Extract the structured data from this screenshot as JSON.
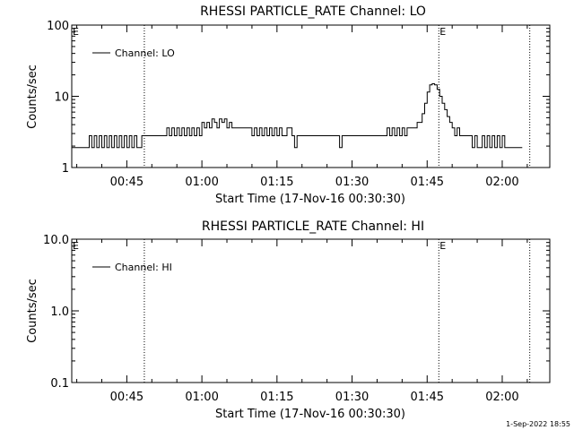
{
  "footer": {
    "timestamp": "1-Sep-2022 18:55"
  },
  "chart_data": [
    {
      "type": "line",
      "title": "RHESSI PARTICLE_RATE Channel: LO",
      "xlabel": "Start Time (17-Nov-16 00:30:30)",
      "ylabel": "Counts/sec",
      "yscale": "log",
      "ylim": [
        1,
        100
      ],
      "xlim": [
        "00:34:00",
        "02:09:30"
      ],
      "x_tick_labels": [
        "00:45",
        "01:00",
        "01:15",
        "01:30",
        "01:45",
        "02:00"
      ],
      "y_tick_labels": [
        "1",
        "10",
        "100"
      ],
      "legend": {
        "position": "top-left",
        "entries": [
          "Channel: LO"
        ]
      },
      "event_markers": [
        {
          "time": "00:48:30",
          "label": ""
        },
        {
          "time": "01:47:20",
          "label": "E"
        },
        {
          "time": "02:05:30",
          "label": ""
        }
      ],
      "left_edge_label": "E",
      "series": [
        {
          "name": "Channel: LO",
          "x": [
            "00:34:00",
            "00:37:00",
            "00:37:30",
            "00:38:00",
            "00:38:30",
            "00:39:00",
            "00:39:30",
            "00:40:00",
            "00:40:30",
            "00:41:00",
            "00:41:30",
            "00:42:00",
            "00:42:30",
            "00:43:00",
            "00:43:30",
            "00:44:00",
            "00:44:30",
            "00:45:00",
            "00:45:30",
            "00:46:00",
            "00:46:30",
            "00:47:00",
            "00:48:00",
            "00:49:00",
            "00:52:00",
            "00:53:00",
            "00:53:30",
            "00:54:00",
            "00:54:30",
            "00:55:00",
            "00:55:30",
            "00:56:00",
            "00:56:30",
            "00:57:00",
            "00:57:30",
            "00:58:00",
            "00:58:30",
            "00:59:00",
            "00:59:30",
            "01:00:00",
            "01:00:30",
            "01:01:00",
            "01:01:30",
            "01:02:00",
            "01:02:30",
            "01:03:00",
            "01:03:30",
            "01:04:00",
            "01:04:30",
            "01:05:00",
            "01:05:30",
            "01:06:00",
            "01:06:30",
            "01:07:00",
            "01:07:30",
            "01:08:00",
            "01:09:00",
            "01:10:00",
            "01:10:30",
            "01:11:00",
            "01:11:30",
            "01:12:00",
            "01:12:30",
            "01:13:00",
            "01:13:30",
            "01:14:00",
            "01:14:30",
            "01:15:00",
            "01:15:30",
            "01:16:00",
            "01:17:00",
            "01:18:00",
            "01:18:30",
            "01:19:00",
            "01:22:00",
            "01:23:00",
            "01:27:00",
            "01:27:30",
            "01:28:00",
            "01:35:00",
            "01:36:00",
            "01:37:00",
            "01:37:30",
            "01:38:00",
            "01:38:30",
            "01:39:00",
            "01:39:30",
            "01:40:00",
            "01:40:30",
            "01:41:00",
            "01:42:00",
            "01:43:00",
            "01:44:00",
            "01:44:30",
            "01:45:00",
            "01:45:30",
            "01:46:00",
            "01:46:30",
            "01:47:00",
            "01:47:30",
            "01:48:00",
            "01:48:30",
            "01:49:00",
            "01:49:30",
            "01:50:00",
            "01:50:30",
            "01:51:00",
            "01:51:30",
            "01:52:00",
            "01:52:30",
            "01:53:00",
            "01:53:30",
            "01:54:00",
            "01:54:30",
            "01:55:00",
            "01:56:00",
            "01:56:30",
            "01:57:00",
            "01:57:30",
            "01:58:00",
            "01:58:30",
            "01:59:00",
            "01:59:30",
            "02:00:00",
            "02:00:30",
            "02:01:00",
            "02:01:30",
            "02:02:00",
            "02:02:30",
            "02:03:00",
            "02:03:30",
            "02:04:00"
          ],
          "y": [
            1.9,
            1.9,
            2.8,
            1.9,
            2.8,
            1.9,
            2.8,
            1.9,
            2.8,
            1.9,
            2.8,
            1.9,
            2.8,
            1.9,
            2.8,
            1.9,
            2.8,
            1.9,
            2.8,
            1.9,
            2.8,
            1.9,
            2.8,
            2.8,
            2.8,
            3.6,
            2.8,
            3.6,
            2.8,
            3.6,
            2.8,
            3.6,
            2.8,
            3.6,
            2.8,
            3.6,
            2.8,
            3.6,
            2.8,
            4.3,
            3.6,
            4.3,
            3.6,
            4.8,
            4.3,
            3.6,
            4.8,
            4.3,
            4.8,
            3.6,
            4.3,
            3.6,
            3.6,
            3.6,
            3.6,
            3.6,
            3.6,
            2.8,
            3.6,
            2.8,
            3.6,
            2.8,
            3.6,
            2.8,
            3.6,
            2.8,
            3.6,
            2.8,
            3.6,
            2.8,
            3.6,
            2.8,
            1.9,
            2.8,
            2.8,
            2.8,
            2.8,
            1.9,
            2.8,
            2.8,
            2.8,
            3.6,
            2.8,
            3.6,
            2.8,
            3.6,
            2.8,
            3.6,
            2.8,
            3.6,
            3.6,
            4.3,
            5.7,
            8.0,
            11.5,
            14.5,
            15.0,
            14.5,
            12.5,
            10.0,
            8.0,
            6.5,
            5.2,
            4.3,
            3.6,
            2.8,
            3.6,
            2.8,
            2.8,
            2.8,
            2.8,
            2.8,
            1.9,
            2.8,
            1.9,
            2.8,
            1.9,
            2.8,
            1.9,
            2.8,
            1.9,
            2.8,
            1.9,
            2.8,
            1.9,
            1.9,
            1.9,
            1.9,
            1.9,
            1.9,
            1.9,
            1.9
          ]
        }
      ]
    },
    {
      "type": "line",
      "title": "RHESSI PARTICLE_RATE Channel: HI",
      "xlabel": "Start Time (17-Nov-16 00:30:30)",
      "ylabel": "Counts/sec",
      "yscale": "log",
      "ylim": [
        0.1,
        10
      ],
      "xlim": [
        "00:34:00",
        "02:09:30"
      ],
      "x_tick_labels": [
        "00:45",
        "01:00",
        "01:15",
        "01:30",
        "01:45",
        "02:00"
      ],
      "y_tick_labels": [
        "0.1",
        "1.0",
        "10.0"
      ],
      "legend": {
        "position": "top-left",
        "entries": [
          "Channel: HI"
        ]
      },
      "event_markers": [
        {
          "time": "00:48:30",
          "label": ""
        },
        {
          "time": "01:47:20",
          "label": "E"
        },
        {
          "time": "02:05:30",
          "label": ""
        }
      ],
      "left_edge_label": "E",
      "series": [
        {
          "name": "Channel: HI",
          "x": [],
          "y": []
        }
      ]
    }
  ]
}
